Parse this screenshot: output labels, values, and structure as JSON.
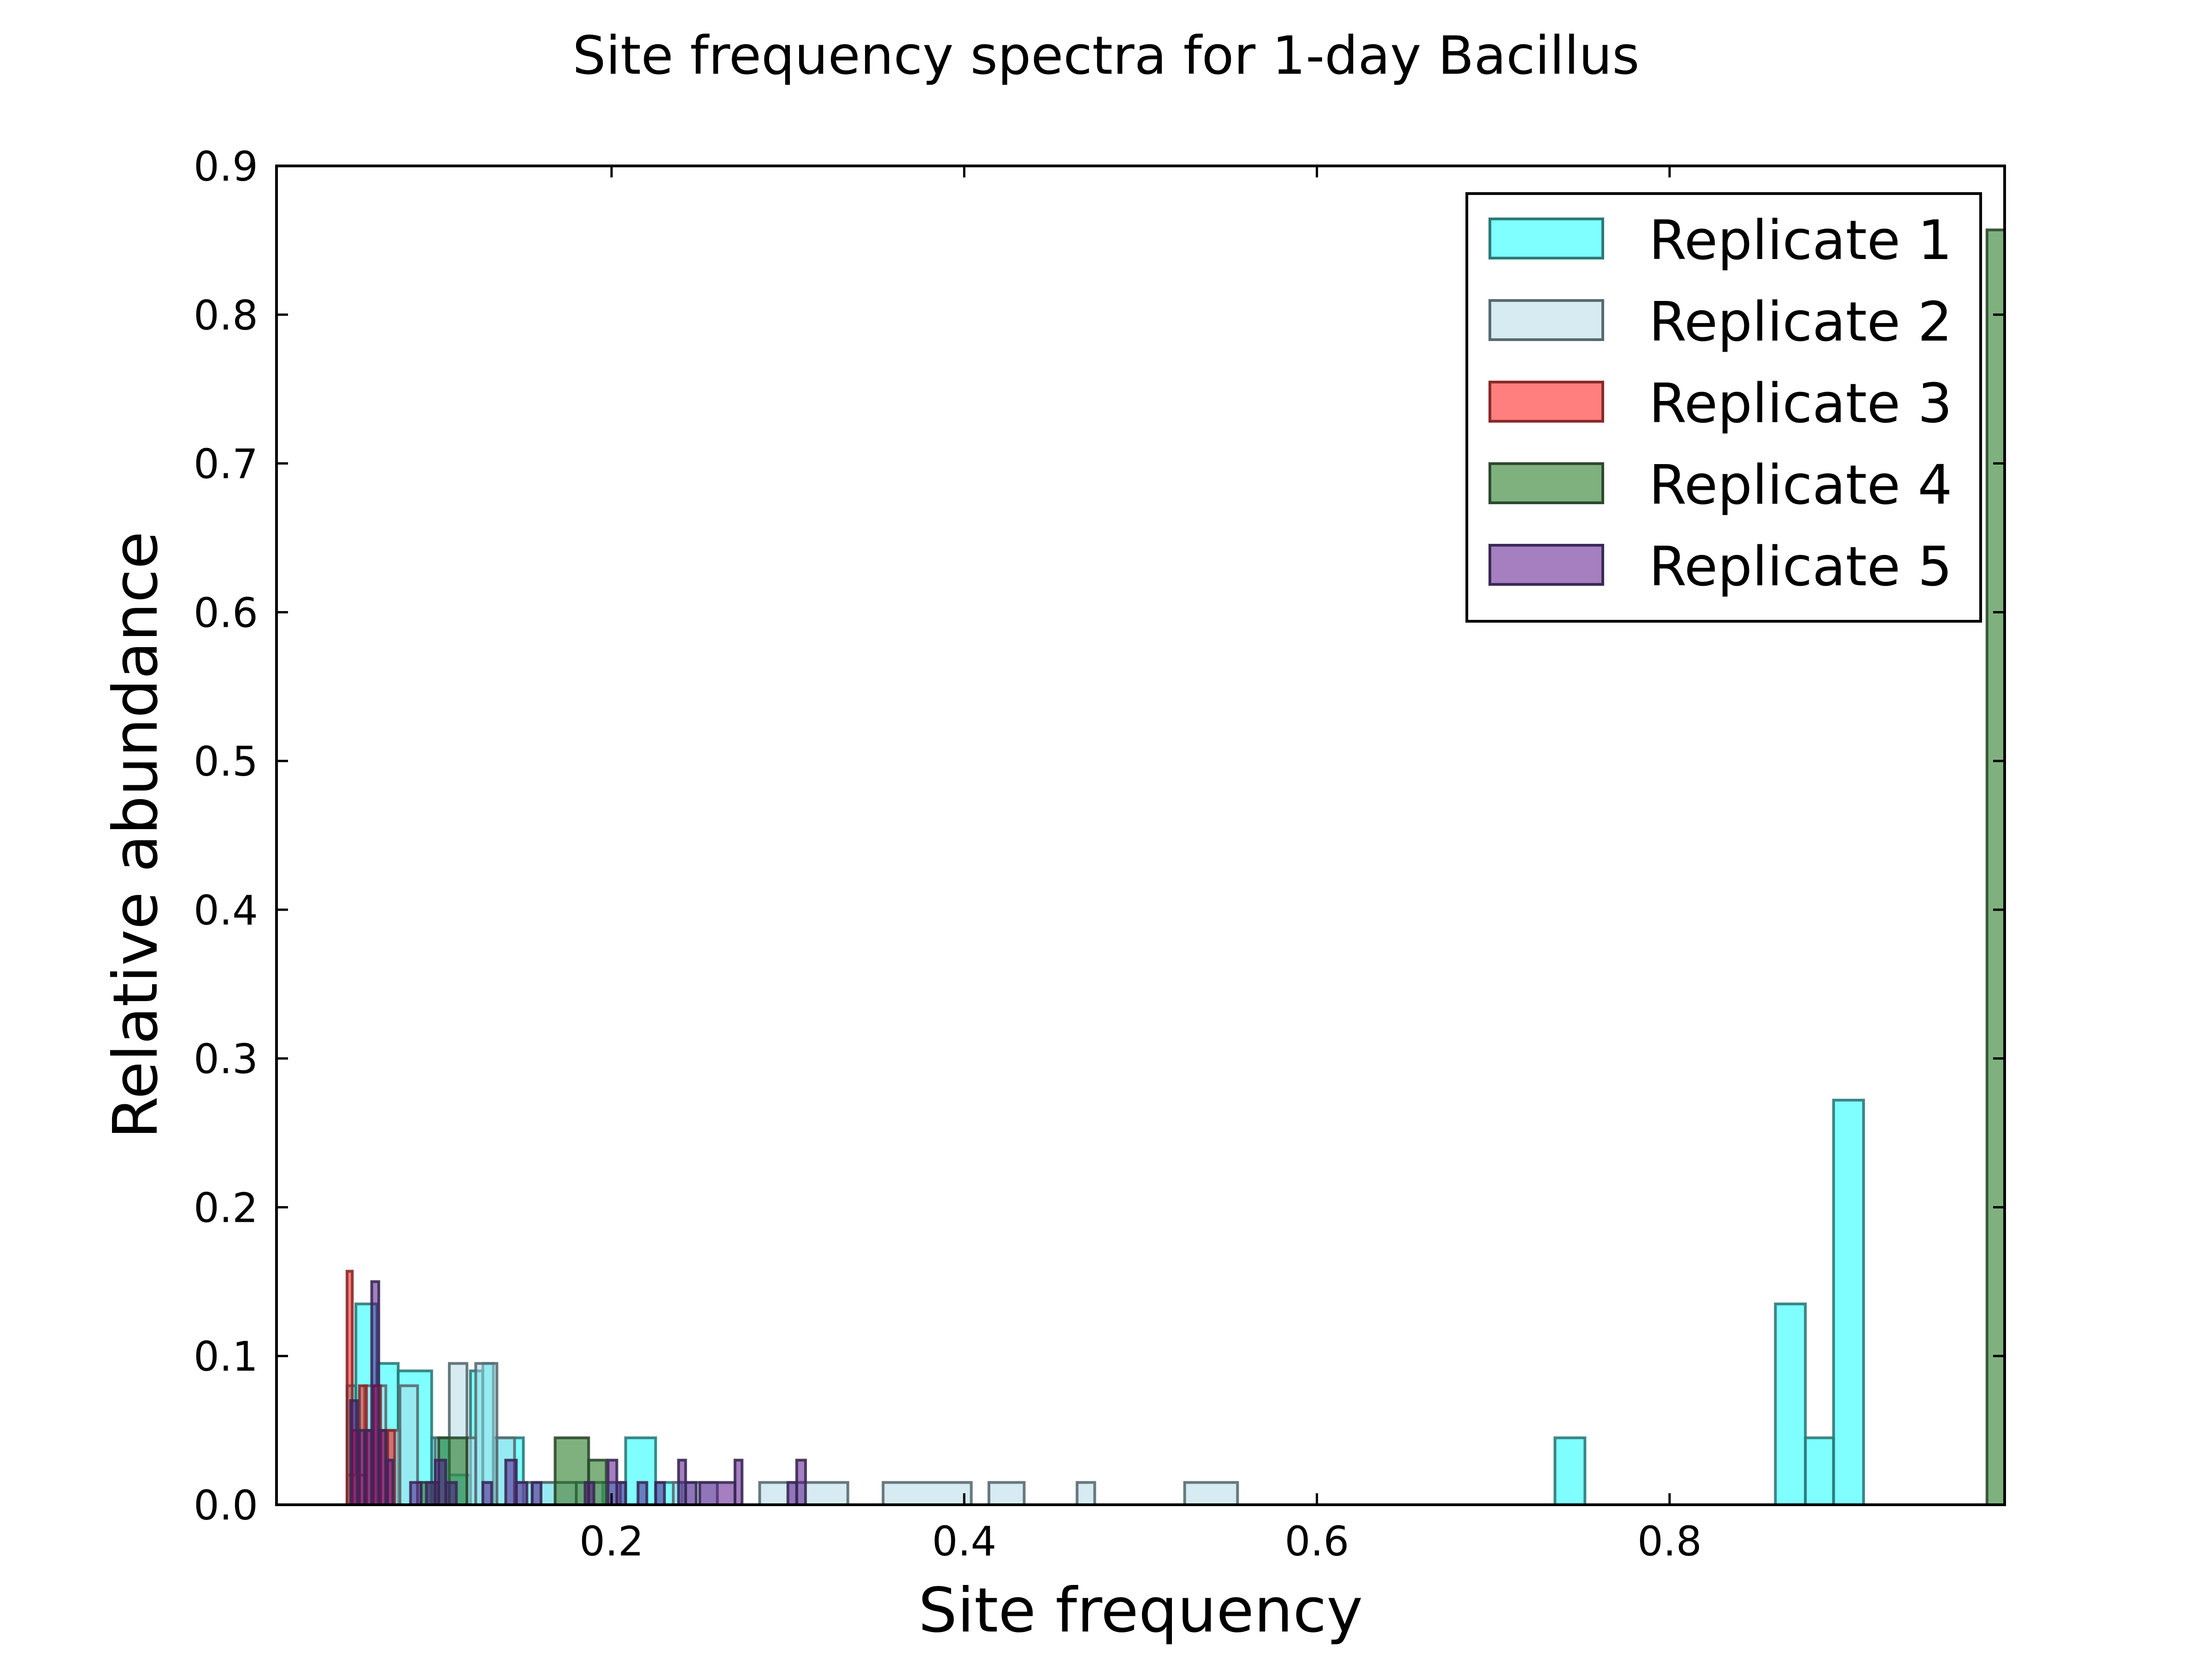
{
  "chart_data": {
    "type": "histogram",
    "title": "Site frequency spectra for 1-day Bacillus",
    "xlabel": "Site frequency",
    "ylabel": "Relative abundance",
    "xlim": [
      0.01,
      0.99
    ],
    "ylim": [
      0,
      0.9
    ],
    "xticks": [
      "0.2",
      "0.4",
      "0.6",
      "0.8"
    ],
    "xtick_values": [
      0.2,
      0.4,
      0.6,
      0.8
    ],
    "yticks": [
      "0.0",
      "0.1",
      "0.2",
      "0.3",
      "0.4",
      "0.5",
      "0.6",
      "0.7",
      "0.8",
      "0.9"
    ],
    "ytick_values": [
      0.0,
      0.1,
      0.2,
      0.3,
      0.4,
      0.5,
      0.6,
      0.7,
      0.8,
      0.9
    ],
    "grid": false,
    "legend_position": "top-right",
    "series": [
      {
        "name": "Replicate 1",
        "color": "#00ffff",
        "edge": "#2e7a7a",
        "bins": [
          [
            0.05,
            0.055,
            0.08
          ],
          [
            0.055,
            0.067,
            0.135
          ],
          [
            0.067,
            0.079,
            0.095
          ],
          [
            0.079,
            0.098,
            0.09
          ],
          [
            0.098,
            0.108,
            0.045
          ],
          [
            0.108,
            0.12,
            0.02
          ],
          [
            0.12,
            0.127,
            0.09
          ],
          [
            0.127,
            0.133,
            0.095
          ],
          [
            0.133,
            0.15,
            0.045
          ],
          [
            0.15,
            0.168,
            0.015
          ],
          [
            0.195,
            0.208,
            0.015
          ],
          [
            0.208,
            0.225,
            0.045
          ],
          [
            0.225,
            0.24,
            0.015
          ],
          [
            0.735,
            0.752,
            0.045
          ],
          [
            0.86,
            0.877,
            0.135
          ],
          [
            0.877,
            0.893,
            0.045
          ],
          [
            0.893,
            0.91,
            0.272
          ]
        ]
      },
      {
        "name": "Replicate 2",
        "color": "#add8e6",
        "edge": "#5a6b70",
        "bins": [
          [
            0.05,
            0.06,
            0.02
          ],
          [
            0.06,
            0.072,
            0.08
          ],
          [
            0.072,
            0.08,
            0.05
          ],
          [
            0.08,
            0.09,
            0.08
          ],
          [
            0.09,
            0.1,
            0.015
          ],
          [
            0.1,
            0.108,
            0.045
          ],
          [
            0.108,
            0.118,
            0.095
          ],
          [
            0.118,
            0.123,
            0.045
          ],
          [
            0.123,
            0.135,
            0.095
          ],
          [
            0.135,
            0.145,
            0.045
          ],
          [
            0.145,
            0.155,
            0.015
          ],
          [
            0.155,
            0.18,
            0.015
          ],
          [
            0.18,
            0.205,
            0.015
          ],
          [
            0.235,
            0.26,
            0.015
          ],
          [
            0.284,
            0.334,
            0.015
          ],
          [
            0.354,
            0.404,
            0.015
          ],
          [
            0.414,
            0.434,
            0.015
          ],
          [
            0.464,
            0.474,
            0.015
          ],
          [
            0.525,
            0.555,
            0.015
          ]
        ]
      },
      {
        "name": "Replicate 3",
        "color": "#ff0000",
        "edge": "#8a2a2a",
        "bins": [
          [
            0.05,
            0.053,
            0.157
          ],
          [
            0.053,
            0.057,
            0.05
          ],
          [
            0.057,
            0.061,
            0.08
          ],
          [
            0.061,
            0.065,
            0.05
          ],
          [
            0.065,
            0.069,
            0.08
          ],
          [
            0.069,
            0.073,
            0.05
          ],
          [
            0.073,
            0.077,
            0.05
          ]
        ]
      },
      {
        "name": "Replicate 4",
        "color": "#006400",
        "edge": "#2e4a2e",
        "bins": [
          [
            0.092,
            0.102,
            0.015
          ],
          [
            0.102,
            0.118,
            0.045
          ],
          [
            0.168,
            0.187,
            0.045
          ],
          [
            0.187,
            0.197,
            0.03
          ],
          [
            0.98,
            0.99,
            0.857
          ]
        ]
      },
      {
        "name": "Replicate 5",
        "color": "#4b0082",
        "edge": "#3a2a55",
        "bins": [
          [
            0.052,
            0.056,
            0.07
          ],
          [
            0.056,
            0.06,
            0.05
          ],
          [
            0.06,
            0.064,
            0.05
          ],
          [
            0.064,
            0.068,
            0.15
          ],
          [
            0.068,
            0.072,
            0.05
          ],
          [
            0.072,
            0.076,
            0.03
          ],
          [
            0.086,
            0.092,
            0.015
          ],
          [
            0.095,
            0.1,
            0.015
          ],
          [
            0.1,
            0.106,
            0.03
          ],
          [
            0.106,
            0.112,
            0.015
          ],
          [
            0.127,
            0.132,
            0.015
          ],
          [
            0.14,
            0.146,
            0.03
          ],
          [
            0.146,
            0.152,
            0.015
          ],
          [
            0.155,
            0.16,
            0.015
          ],
          [
            0.185,
            0.19,
            0.015
          ],
          [
            0.198,
            0.203,
            0.03
          ],
          [
            0.203,
            0.208,
            0.015
          ],
          [
            0.215,
            0.22,
            0.015
          ],
          [
            0.225,
            0.23,
            0.015
          ],
          [
            0.238,
            0.242,
            0.03
          ],
          [
            0.242,
            0.248,
            0.015
          ],
          [
            0.25,
            0.27,
            0.015
          ],
          [
            0.27,
            0.274,
            0.03
          ],
          [
            0.3,
            0.305,
            0.015
          ],
          [
            0.305,
            0.31,
            0.03
          ]
        ]
      }
    ]
  }
}
